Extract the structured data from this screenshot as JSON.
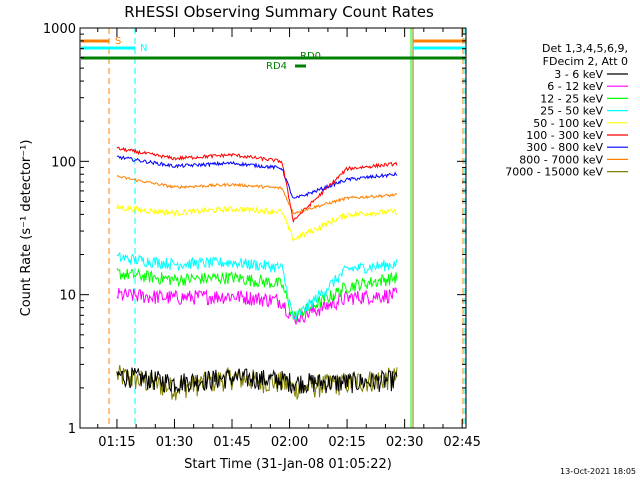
{
  "chart_data": {
    "type": "line",
    "title": "RHESSI Observing Summary Count Rates",
    "xlabel": "Start Time (31-Jan-08 01:05:22)",
    "ylabel": "Count Rate (s⁻¹ detector⁻¹)",
    "y_scale": "log",
    "ylim": [
      1,
      1000
    ],
    "xlim_minutes": [
      65.37,
      166.0
    ],
    "x_ticks": [
      {
        "label": "01:15",
        "minutes": 75
      },
      {
        "label": "01:30",
        "minutes": 90
      },
      {
        "label": "01:45",
        "minutes": 105
      },
      {
        "label": "02:00",
        "minutes": 120
      },
      {
        "label": "02:15",
        "minutes": 135
      },
      {
        "label": "02:30",
        "minutes": 150
      },
      {
        "label": "02:45",
        "minutes": 165
      }
    ],
    "y_ticks": [
      {
        "label": "1",
        "value": 1
      },
      {
        "label": "10",
        "value": 10
      },
      {
        "label": "100",
        "value": 100
      },
      {
        "label": "1000",
        "value": 1000
      }
    ],
    "legend": {
      "placement": "right",
      "header": [
        "Det 1,3,4,5,6,9,",
        "FDecim 2, Att 0"
      ]
    },
    "series": [
      {
        "name": "3 - 6 keV",
        "color": "#000000",
        "x": [
          75,
          90,
          105,
          118,
          121,
          135,
          148
        ],
        "y": [
          2.5,
          2.2,
          2.4,
          2.3,
          2.2,
          2.2,
          2.3
        ]
      },
      {
        "name": "6 - 12 keV",
        "color": "#ff00ff",
        "x": [
          75,
          90,
          105,
          118,
          121,
          135,
          148
        ],
        "y": [
          10.0,
          9.5,
          9.8,
          9.0,
          6.6,
          9.5,
          10.0
        ]
      },
      {
        "name": "12 - 25 keV",
        "color": "#00ff00",
        "x": [
          75,
          90,
          105,
          118,
          121,
          135,
          148
        ],
        "y": [
          14.5,
          13.0,
          13.5,
          12.0,
          6.8,
          11.5,
          13.5
        ]
      },
      {
        "name": "25 - 50 keV",
        "color": "#00ffff",
        "x": [
          75,
          90,
          105,
          118,
          121,
          135,
          148
        ],
        "y": [
          19.0,
          17.0,
          17.5,
          16.0,
          6.5,
          15.5,
          17.0
        ]
      },
      {
        "name": "50 - 100 keV",
        "color": "#ffff00",
        "x": [
          75,
          90,
          105,
          118,
          121,
          135,
          148
        ],
        "y": [
          45,
          41,
          44,
          42,
          26,
          40,
          42
        ]
      },
      {
        "name": "100 - 300 keV",
        "color": "#ff0000",
        "x": [
          75,
          90,
          105,
          118,
          121,
          135,
          148
        ],
        "y": [
          125,
          105,
          112,
          100,
          36,
          88,
          96
        ]
      },
      {
        "name": "300 - 800 keV",
        "color": "#0000ff",
        "x": [
          75,
          90,
          105,
          118,
          121,
          135,
          148
        ],
        "y": [
          108,
          92,
          97,
          89,
          52,
          73,
          80
        ]
      },
      {
        "name": "800 - 7000 keV",
        "color": "#ff8000",
        "x": [
          75,
          90,
          105,
          118,
          121,
          135,
          148
        ],
        "y": [
          77,
          64,
          67,
          63,
          41,
          53,
          56
        ]
      },
      {
        "name": "7000 - 15000 keV",
        "color": "#808000",
        "x": [
          75,
          90,
          105,
          118,
          121,
          135,
          148
        ],
        "y": [
          2.5,
          2.0,
          2.4,
          2.2,
          2.0,
          2.2,
          2.4
        ]
      }
    ],
    "annotations": [
      {
        "text": "S",
        "color": "#ff8000"
      },
      {
        "text": "N",
        "color": "#00ffff"
      },
      {
        "text": "RD0",
        "color": "#008000"
      },
      {
        "text": "RD4",
        "color": "#008000"
      }
    ],
    "footer": "13-Oct-2021 18:05"
  }
}
